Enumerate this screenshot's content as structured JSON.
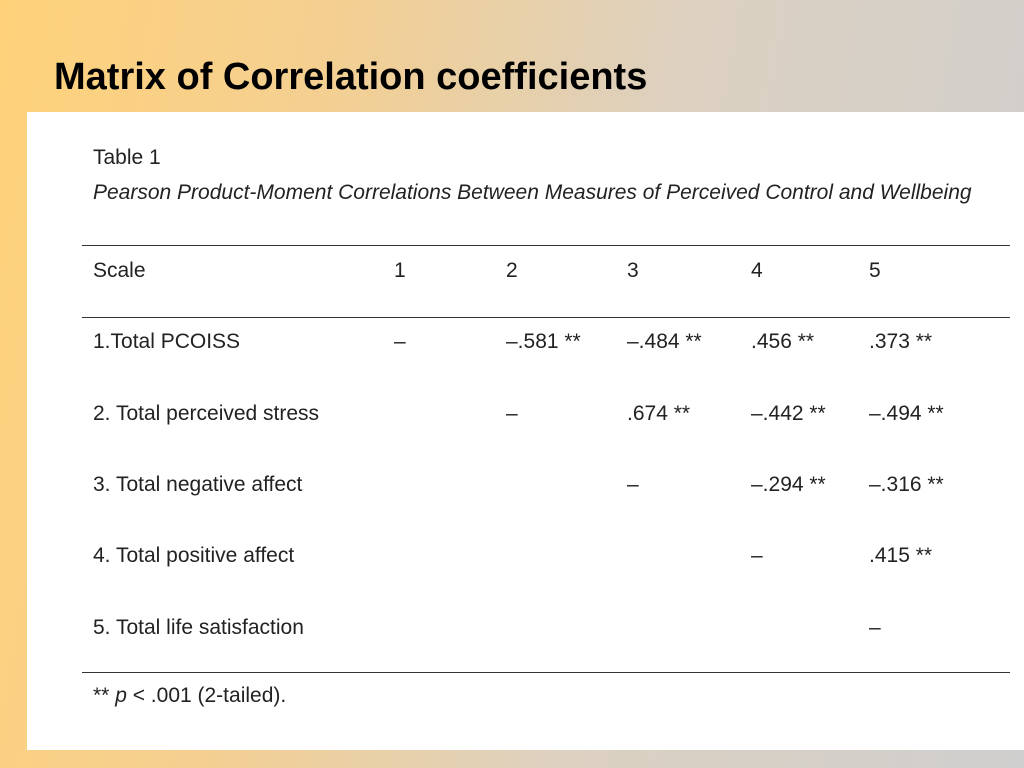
{
  "slide": {
    "title": "Matrix of Correlation coefficients"
  },
  "table": {
    "label": "Table 1",
    "caption": "Pearson Product-Moment Correlations Between Measures of Perceived Control and Wellbeing",
    "columns": [
      "Scale",
      "1",
      "2",
      "3",
      "4",
      "5"
    ],
    "rows": [
      {
        "scale": "1.Total PCOISS",
        "values": [
          "–",
          "–.581 **",
          "–.484 **",
          ".456 **",
          ".373 **"
        ]
      },
      {
        "scale": "2. Total perceived stress",
        "values": [
          "",
          "–",
          ".674 **",
          "–.442 **",
          "–.494 **"
        ]
      },
      {
        "scale": "3. Total negative affect",
        "values": [
          "",
          "",
          "–",
          "–.294 **",
          "–.316 **"
        ]
      },
      {
        "scale": "4. Total positive affect",
        "values": [
          "",
          "",
          "",
          "–",
          ".415 **"
        ]
      },
      {
        "scale": "5. Total life satisfaction",
        "values": [
          "",
          "",
          "",
          "",
          "–"
        ]
      }
    ],
    "footnote": {
      "prefix": "** ",
      "p": "p",
      "rest": " < .001 (2-tailed)."
    }
  }
}
